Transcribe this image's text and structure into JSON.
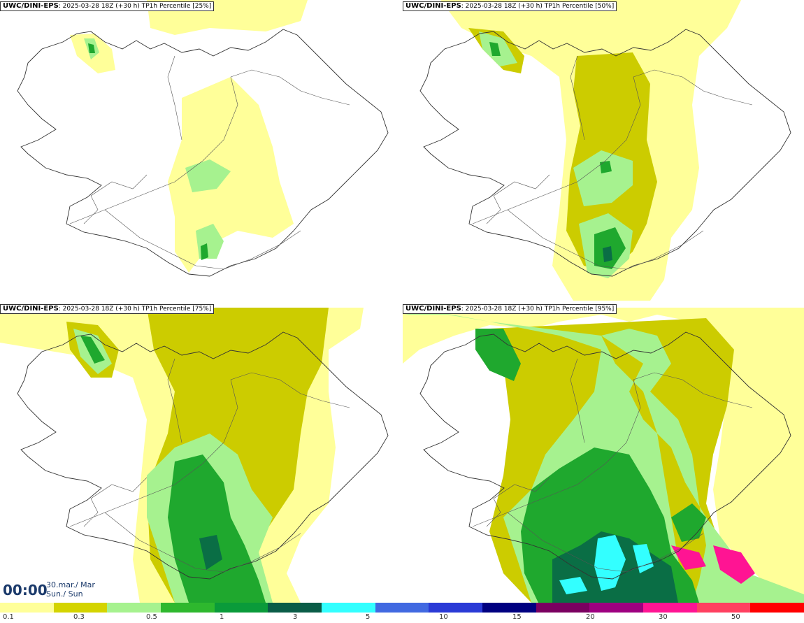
{
  "panels": [
    {
      "model": "UWC/DINI-EPS",
      "run_info": ": 2025-03-28 18Z (+30 h) TP1h Percentile [25%]",
      "level": 0
    },
    {
      "model": "UWC/DINI-EPS",
      "run_info": ": 2025-03-28 18Z (+30 h) TP1h Percentile [50%]",
      "level": 1
    },
    {
      "model": "UWC/DINI-EPS",
      "run_info": ": 2025-03-28 18Z (+30 h) TP1h Percentile [75%]",
      "level": 2
    },
    {
      "model": "UWC/DINI-EPS",
      "run_info": ": 2025-03-28 18Z (+30 h) TP1h Percentile [95%]",
      "level": 3
    }
  ],
  "time": {
    "clock": "00:00",
    "date_line1": "30.mar./ Mar",
    "date_line2": "Sun./ Sun"
  },
  "legend": {
    "colors": [
      "#ffff99",
      "#d4d400",
      "#a6f28f",
      "#2eb82e",
      "#0a9b3a",
      "#0a5c47",
      "#33ffff",
      "#4169e1",
      "#2a3ad6",
      "#000080",
      "#7a0060",
      "#9e0080",
      "#ff1493",
      "#ff4060",
      "#ff0000"
    ],
    "labels": [
      "0.1",
      "0.3",
      "0.5",
      "1",
      "3",
      "5",
      "10",
      "15",
      "20",
      "30",
      "50"
    ]
  },
  "colors": {
    "light_yellow": "#ffff99",
    "olive": "#cccc00",
    "light_green": "#a6f28f",
    "green": "#1fa82e",
    "dark_green": "#0a6e45",
    "cyan": "#33ffff",
    "magenta": "#ff1493"
  }
}
